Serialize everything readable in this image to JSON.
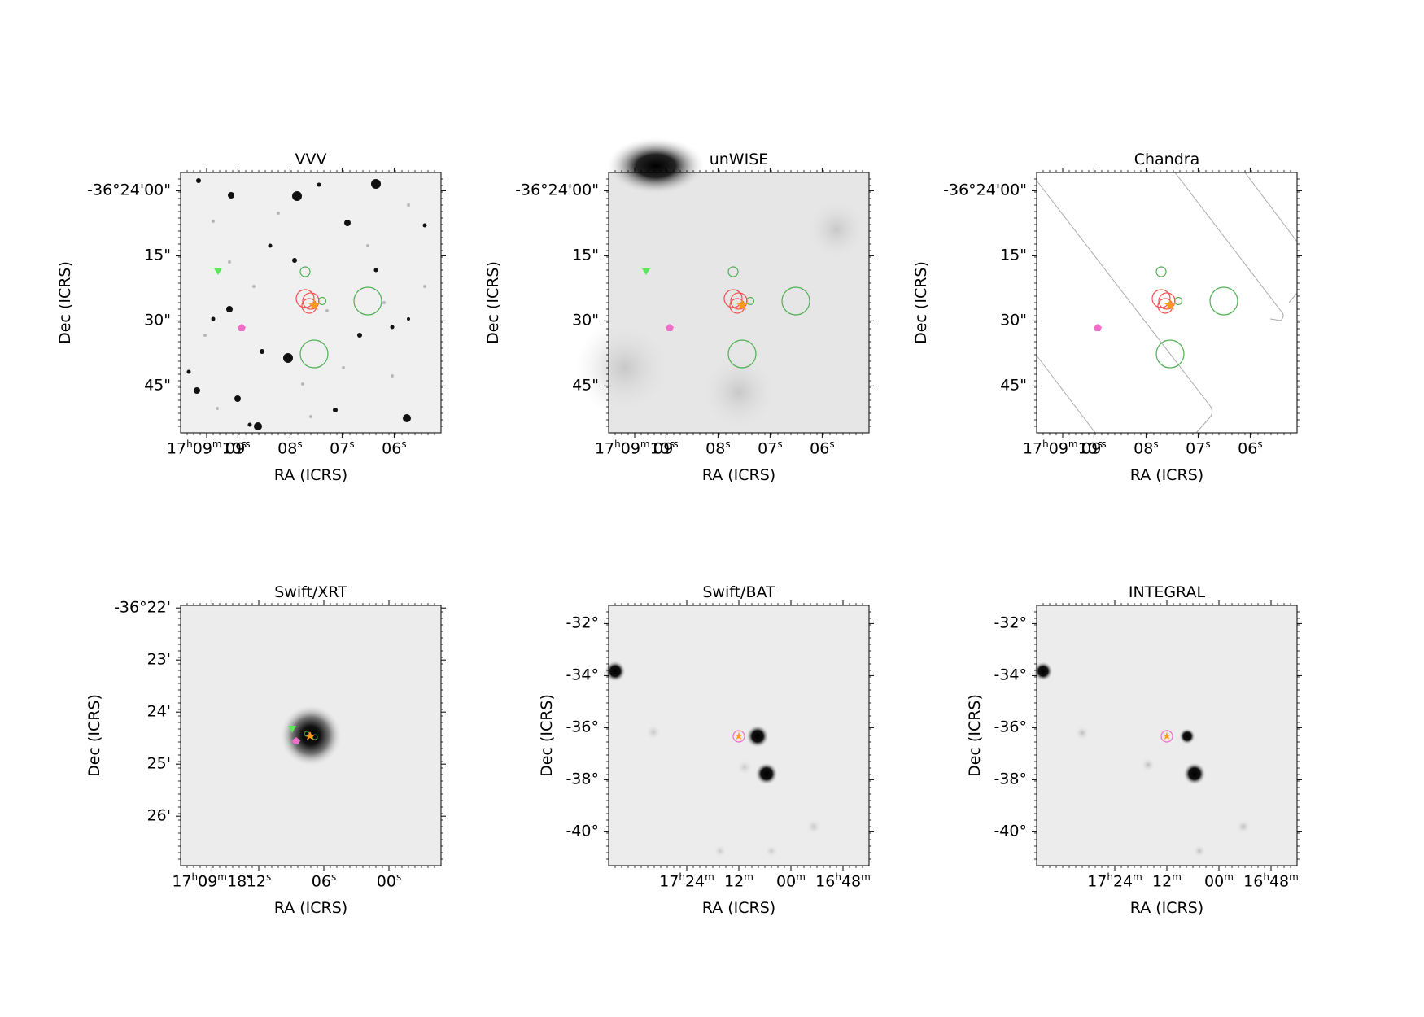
{
  "panels": [
    {
      "title": "VVV",
      "xlabel": "RA (ICRS)",
      "ylabel": "Dec (ICRS)",
      "yticks": [
        {
          "html": "-36°24'00\"",
          "v": 0.07
        },
        {
          "html": "15\"",
          "v": 0.32
        },
        {
          "html": "30\"",
          "v": 0.57
        },
        {
          "html": "45\"",
          "v": 0.82
        }
      ],
      "xticks": [
        {
          "html": "17<sup>h</sup>09<sup>m</sup>10<sup>s</sup>",
          "v": 0.1
        },
        {
          "html": "09<sup>s</sup>",
          "v": 0.22
        },
        {
          "html": "08<sup>s</sup>",
          "v": 0.42
        },
        {
          "html": "07<sup>s</sup>",
          "v": 0.62
        },
        {
          "html": "06<sup>s</sup>",
          "v": 0.82
        }
      ]
    },
    {
      "title": "unWISE",
      "xlabel": "RA (ICRS)",
      "ylabel": "Dec (ICRS)",
      "yticks": [
        {
          "html": "-36°24'00\"",
          "v": 0.07
        },
        {
          "html": "15\"",
          "v": 0.32
        },
        {
          "html": "30\"",
          "v": 0.57
        },
        {
          "html": "45\"",
          "v": 0.82
        }
      ],
      "xticks": [
        {
          "html": "17<sup>h</sup>09<sup>m</sup>10<sup>s</sup>",
          "v": 0.1
        },
        {
          "html": "09<sup>s</sup>",
          "v": 0.22
        },
        {
          "html": "08<sup>s</sup>",
          "v": 0.42
        },
        {
          "html": "07<sup>s</sup>",
          "v": 0.62
        },
        {
          "html": "06<sup>s</sup>",
          "v": 0.82
        }
      ]
    },
    {
      "title": "Chandra",
      "xlabel": "RA (ICRS)",
      "ylabel": "Dec (ICRS)",
      "yticks": [
        {
          "html": "-36°24'00\"",
          "v": 0.07
        },
        {
          "html": "15\"",
          "v": 0.32
        },
        {
          "html": "30\"",
          "v": 0.57
        },
        {
          "html": "45\"",
          "v": 0.82
        }
      ],
      "xticks": [
        {
          "html": "17<sup>h</sup>09<sup>m</sup>10<sup>s</sup>",
          "v": 0.1
        },
        {
          "html": "09<sup>s</sup>",
          "v": 0.22
        },
        {
          "html": "08<sup>s</sup>",
          "v": 0.42
        },
        {
          "html": "07<sup>s</sup>",
          "v": 0.62
        },
        {
          "html": "06<sup>s</sup>",
          "v": 0.82
        }
      ]
    },
    {
      "title": "Swift/XRT",
      "xlabel": "RA (ICRS)",
      "ylabel": "Dec (ICRS)",
      "yticks": [
        {
          "html": "-36°22'",
          "v": 0.01
        },
        {
          "html": "23'",
          "v": 0.21
        },
        {
          "html": "24'",
          "v": 0.41
        },
        {
          "html": "25'",
          "v": 0.61
        },
        {
          "html": "26'",
          "v": 0.81
        }
      ],
      "xticks": [
        {
          "html": "17<sup>h</sup>09<sup>m</sup>18<sup>s</sup>",
          "v": 0.12
        },
        {
          "html": "12<sup>s</sup>",
          "v": 0.3
        },
        {
          "html": "06<sup>s</sup>",
          "v": 0.55
        },
        {
          "html": "00<sup>s</sup>",
          "v": 0.8
        }
      ]
    },
    {
      "title": "Swift/BAT",
      "xlabel": "RA (ICRS)",
      "ylabel": "Dec (ICRS)",
      "yticks": [
        {
          "html": "-32°",
          "v": 0.07
        },
        {
          "html": "-34°",
          "v": 0.27
        },
        {
          "html": "-36°",
          "v": 0.47
        },
        {
          "html": "-38°",
          "v": 0.67
        },
        {
          "html": "-40°",
          "v": 0.87
        }
      ],
      "xticks": [
        {
          "html": "17<sup>h</sup>24<sup>m</sup>",
          "v": 0.3
        },
        {
          "html": "12<sup>m</sup>",
          "v": 0.5
        },
        {
          "html": "00<sup>m</sup>",
          "v": 0.7
        },
        {
          "html": "16<sup>h</sup>48<sup>m</sup>",
          "v": 0.9
        }
      ]
    },
    {
      "title": "INTEGRAL",
      "xlabel": "RA (ICRS)",
      "ylabel": "Dec (ICRS)",
      "yticks": [
        {
          "html": "-32°",
          "v": 0.07
        },
        {
          "html": "-34°",
          "v": 0.27
        },
        {
          "html": "-36°",
          "v": 0.47
        },
        {
          "html": "-38°",
          "v": 0.67
        },
        {
          "html": "-40°",
          "v": 0.87
        }
      ],
      "xticks": [
        {
          "html": "17<sup>h</sup>24<sup>m</sup>",
          "v": 0.3
        },
        {
          "html": "12<sup>m</sup>",
          "v": 0.5
        },
        {
          "html": "00<sup>m</sup>",
          "v": 0.7
        },
        {
          "html": "16<sup>h</sup>48<sup>m</sup>",
          "v": 0.9
        }
      ]
    }
  ],
  "colors": {
    "red_circle": "#f05050",
    "green_circle": "#4caf50",
    "green_triangle": "#5ce65c",
    "pink_marker": "#f06ec8",
    "orange_star": "#ff9a1f",
    "xrt_circle": "#66ee66"
  }
}
